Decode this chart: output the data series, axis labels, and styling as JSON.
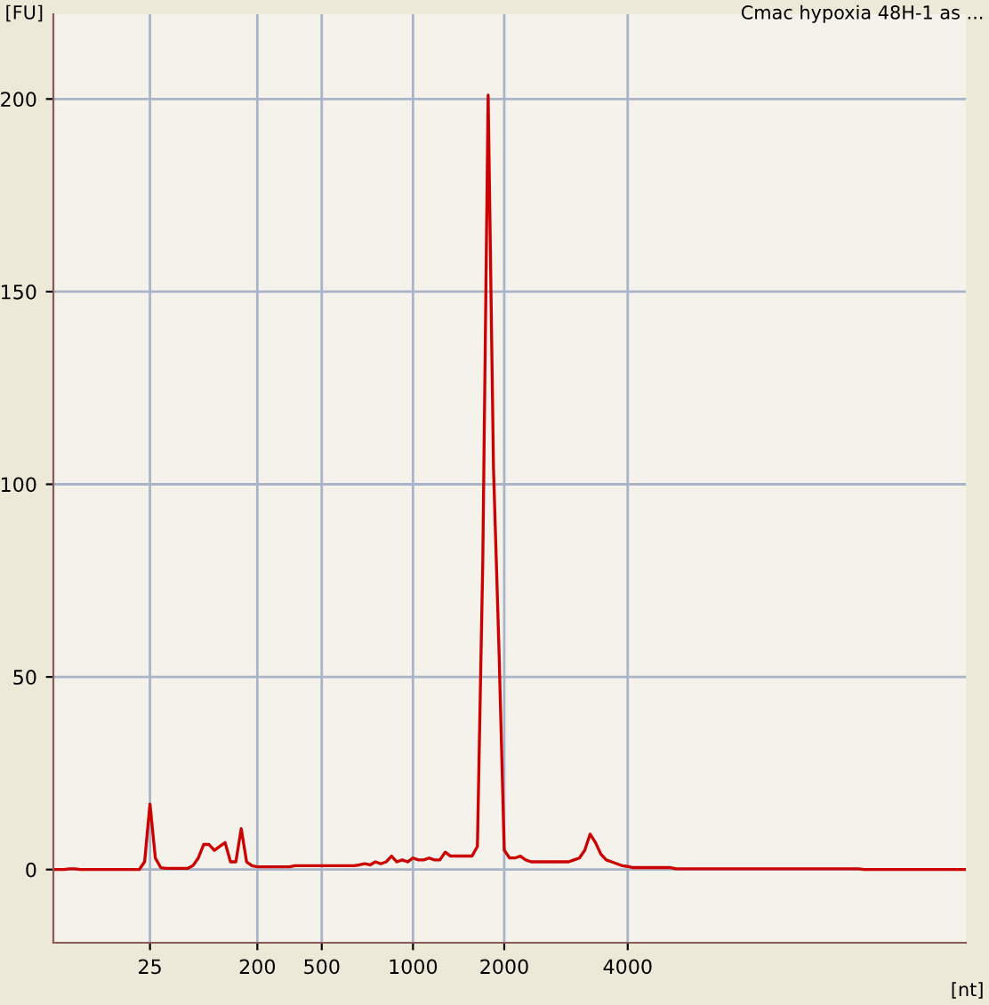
{
  "chart_data": {
    "type": "line",
    "title": "Cmac hypoxia 48H-1 as ...",
    "xlabel": "[nt]",
    "ylabel": "[FU]",
    "categories": [
      null,
      null,
      null,
      null,
      null,
      null,
      null,
      null,
      null,
      null,
      null,
      null,
      null,
      null,
      null,
      null,
      null,
      null,
      "25",
      null,
      null,
      null,
      null,
      null,
      null,
      null,
      null,
      null,
      null,
      null,
      null,
      null,
      null,
      null,
      null,
      null,
      null,
      null,
      "200",
      null,
      null,
      null,
      null,
      null,
      null,
      null,
      null,
      null,
      null,
      null,
      "500",
      null,
      null,
      null,
      null,
      null,
      null,
      null,
      null,
      null,
      null,
      null,
      null,
      null,
      null,
      null,
      null,
      "1000",
      null,
      null,
      null,
      null,
      null,
      null,
      null,
      null,
      null,
      null,
      null,
      null,
      null,
      null,
      null,
      null,
      "2000",
      null,
      null,
      null,
      null,
      null,
      null,
      null,
      null,
      null,
      null,
      null,
      null,
      null,
      null,
      null,
      null,
      null,
      null,
      null,
      null,
      null,
      null,
      "4000",
      null,
      null,
      null,
      null,
      null,
      null,
      null,
      null,
      null,
      null,
      null,
      null,
      null,
      null,
      null,
      null,
      null,
      null,
      null,
      null,
      null,
      null,
      null,
      null,
      null,
      null,
      null,
      null,
      null,
      null,
      null,
      null,
      null,
      null,
      null,
      null,
      null,
      null,
      null,
      null,
      null,
      null,
      null,
      null,
      null,
      null,
      null,
      null,
      null,
      null,
      null,
      null,
      null,
      null,
      null,
      null,
      null,
      null,
      null,
      null,
      null,
      null,
      null
    ],
    "series": [
      {
        "color": "#cc0000",
        "values": [
          0,
          0,
          0,
          0.2,
          0.2,
          0,
          0,
          0,
          0,
          0,
          0,
          0,
          0,
          0,
          0,
          0,
          0,
          2,
          17,
          3,
          0.5,
          0.3,
          0.3,
          0.3,
          0.3,
          0.3,
          1,
          3,
          6.5,
          6.5,
          5,
          6,
          7,
          2,
          2,
          10.6,
          2,
          1,
          0.7,
          0.7,
          0.7,
          0.7,
          0.7,
          0.7,
          0.7,
          1,
          1,
          1,
          1,
          1,
          1,
          1,
          1,
          1,
          1,
          1,
          1,
          1.2,
          1.5,
          1.2,
          2,
          1.5,
          2,
          3.5,
          2,
          2.5,
          2,
          3,
          2.5,
          2.5,
          3,
          2.5,
          2.5,
          4.5,
          3.5,
          3.5,
          3.5,
          3.5,
          3.5,
          6,
          80,
          201,
          104,
          58,
          5,
          3,
          3,
          3.5,
          2.5,
          2,
          2,
          2,
          2,
          2,
          2,
          2,
          2,
          2.5,
          3,
          5,
          9.2,
          7,
          4,
          2.5,
          2,
          1.5,
          1,
          0.8,
          0.5,
          0.5,
          0.5,
          0.5,
          0.5,
          0.5,
          0.5,
          0.5,
          0.2,
          0.2,
          0.2,
          0.2,
          0.2,
          0.2,
          0.2,
          0.2,
          0.2,
          0.2,
          0.2,
          0.2,
          0.2,
          0.2,
          0.2,
          0.2,
          0.2,
          0.2,
          0.2,
          0.2,
          0.2,
          0.2,
          0.2,
          0.2,
          0.2,
          0.2,
          0.2,
          0.2,
          0.2,
          0.2,
          0.2,
          0.2,
          0.2,
          0.2,
          0.2,
          0,
          0,
          0,
          0,
          0,
          0,
          0,
          0,
          0,
          0,
          0,
          0,
          0,
          0,
          0,
          0,
          0,
          0,
          0,
          0
        ]
      }
    ],
    "ylim": [
      -19,
      222
    ],
    "yticks": [
      0,
      50,
      100,
      150,
      200
    ],
    "grid": true
  }
}
